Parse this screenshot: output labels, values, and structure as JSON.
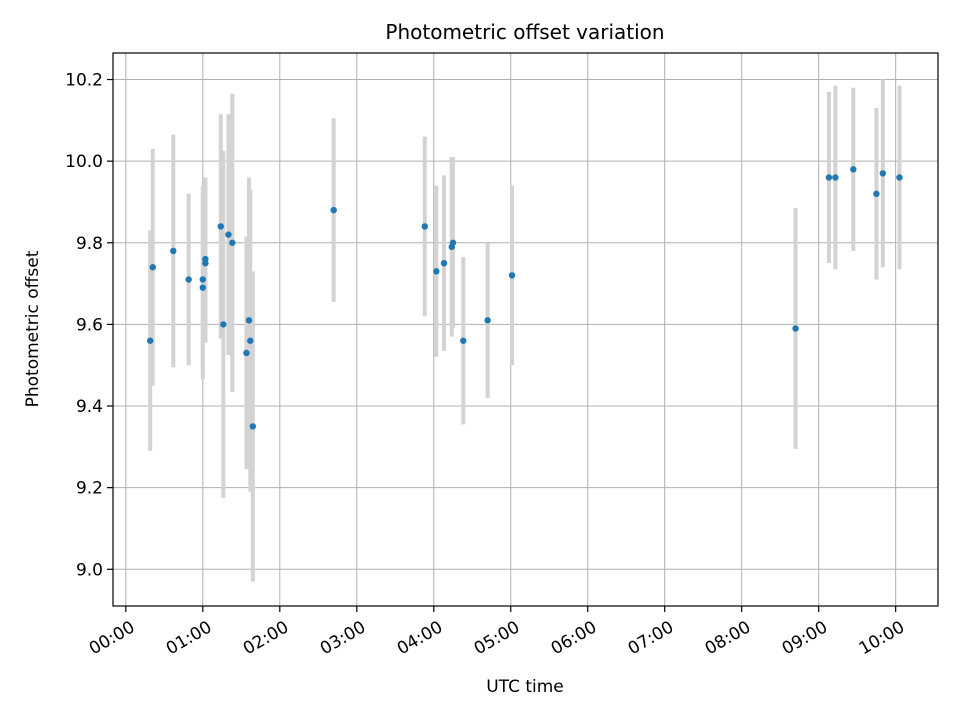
{
  "chart_data": {
    "type": "scatter",
    "title": "Photometric offset variation",
    "xlabel": "UTC time",
    "ylabel": "Photometric offset",
    "x_unit": "UTC time (HH:MM)",
    "xlim": [
      "-00:10",
      "10:33"
    ],
    "ylim": [
      8.91,
      10.265
    ],
    "grid": true,
    "x_tick_labels": [
      "00:00",
      "01:00",
      "02:00",
      "03:00",
      "04:00",
      "05:00",
      "06:00",
      "07:00",
      "08:00",
      "09:00",
      "10:00"
    ],
    "y_ticks": [
      9.0,
      9.2,
      9.4,
      9.6,
      9.8,
      10.0,
      10.2
    ],
    "y_tick_labels": [
      "9.0",
      "9.2",
      "9.4",
      "9.6",
      "9.8",
      "10.0",
      "10.2"
    ],
    "series": [
      {
        "points": [
          {
            "x": "00:19",
            "y": 9.56,
            "yerr": 0.27
          },
          {
            "x": "00:21",
            "y": 9.74,
            "yerr": 0.29
          },
          {
            "x": "00:37",
            "y": 9.78,
            "yerr": 0.285
          },
          {
            "x": "00:49",
            "y": 9.71,
            "yerr": 0.21
          },
          {
            "x": "01:00",
            "y": 9.71,
            "yerr": 0.23
          },
          {
            "x": "01:00",
            "y": 9.69,
            "yerr": 0.225
          },
          {
            "x": "01:02",
            "y": 9.76,
            "yerr": 0.2
          },
          {
            "x": "01:02",
            "y": 9.75,
            "yerr": 0.195
          },
          {
            "x": "01:14",
            "y": 9.84,
            "yerr": 0.275
          },
          {
            "x": "01:16",
            "y": 9.6,
            "yerr": 0.425
          },
          {
            "x": "01:20",
            "y": 9.82,
            "yerr": 0.295
          },
          {
            "x": "01:23",
            "y": 9.8,
            "yerr": 0.365
          },
          {
            "x": "01:34",
            "y": 9.53,
            "yerr": 0.285
          },
          {
            "x": "01:36",
            "y": 9.61,
            "yerr": 0.35
          },
          {
            "x": "01:37",
            "y": 9.56,
            "yerr": 0.37
          },
          {
            "x": "01:39",
            "y": 9.35,
            "yerr": 0.38
          },
          {
            "x": "02:42",
            "y": 9.88,
            "yerr": 0.225
          },
          {
            "x": "03:53",
            "y": 9.84,
            "yerr": 0.22
          },
          {
            "x": "04:02",
            "y": 9.73,
            "yerr": 0.21
          },
          {
            "x": "04:08",
            "y": 9.75,
            "yerr": 0.215
          },
          {
            "x": "04:14",
            "y": 9.79,
            "yerr": 0.22
          },
          {
            "x": "04:15",
            "y": 9.8,
            "yerr": 0.21
          },
          {
            "x": "04:23",
            "y": 9.56,
            "yerr": 0.205
          },
          {
            "x": "04:42",
            "y": 9.61,
            "yerr": 0.19
          },
          {
            "x": "05:01",
            "y": 9.72,
            "yerr": 0.22
          },
          {
            "x": "08:42",
            "y": 9.59,
            "yerr": 0.295
          },
          {
            "x": "09:08",
            "y": 9.96,
            "yerr": 0.21
          },
          {
            "x": "09:13",
            "y": 9.96,
            "yerr": 0.225
          },
          {
            "x": "09:27",
            "y": 9.98,
            "yerr": 0.2
          },
          {
            "x": "09:45",
            "y": 9.92,
            "yerr": 0.21
          },
          {
            "x": "09:50",
            "y": 9.97,
            "yerr": 0.23
          },
          {
            "x": "10:03",
            "y": 9.96,
            "yerr": 0.225
          }
        ]
      }
    ],
    "colors": {
      "point": "#1f77b4",
      "errorbar": "#d3d3d3",
      "grid": "#b0b0b0",
      "axes": "#000000"
    }
  }
}
